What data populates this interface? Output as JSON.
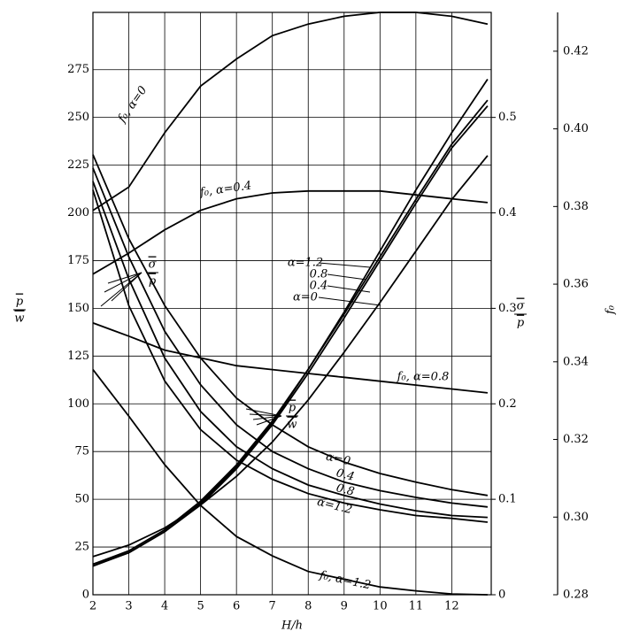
{
  "chart_data": {
    "type": "line",
    "xlabel": "H/h",
    "ylabel": {
      "num": "p",
      "den": "w"
    },
    "y2label": {
      "num": "σ",
      "den": "p"
    },
    "y3label": "f₀",
    "x": [
      2,
      3,
      4,
      5,
      6,
      7,
      8,
      9,
      10,
      11,
      12,
      13
    ],
    "xlim": [
      2,
      13.1
    ],
    "xticks": [
      2,
      3,
      4,
      5,
      6,
      7,
      8,
      9,
      10,
      11,
      12
    ],
    "ylim": [
      0,
      305
    ],
    "yticks": [
      0,
      25,
      50,
      75,
      100,
      125,
      150,
      175,
      200,
      225,
      250,
      275
    ],
    "y2lim": [
      0,
      0.61
    ],
    "y2ticks": [
      0,
      0.1,
      0.2,
      0.3,
      0.4,
      0.5
    ],
    "y3lim": [
      0.28,
      0.43
    ],
    "y3ticks": [
      {
        "value": 0.28,
        "label": "0.28"
      },
      {
        "value": 0.3,
        "label": "0.30"
      },
      0.32,
      0.34,
      0.36,
      0.38,
      {
        "value": 0.4,
        "label": "0.40"
      },
      0.42
    ],
    "grid": true,
    "series": [
      {
        "name": "f₀, α=0",
        "color": "#000000",
        "axis": "y3",
        "values": [
          0.379,
          0.385,
          0.399,
          0.411,
          0.418,
          0.424,
          0.427,
          0.429,
          0.43,
          0.43,
          0.429,
          0.427
        ]
      },
      {
        "name": "f₀, α=0.4",
        "color": "#000000",
        "axis": "y3",
        "values": [
          0.3626,
          0.368,
          0.374,
          0.379,
          0.382,
          0.3835,
          0.384,
          0.384,
          0.384,
          0.383,
          0.382,
          0.381
        ]
      },
      {
        "name": "f₀, α=0.8",
        "color": "#000000",
        "axis": "y3",
        "values": [
          0.35,
          0.3466,
          0.343,
          0.341,
          0.339,
          0.338,
          0.337,
          0.336,
          0.335,
          0.334,
          0.333,
          0.332
        ]
      },
      {
        "name": "f₀, α=1.2",
        "color": "#000000",
        "axis": "y3",
        "values": [
          0.338,
          0.326,
          0.3135,
          0.303,
          0.295,
          0.29,
          0.286,
          0.284,
          0.282,
          0.281,
          0.2802,
          0.28
        ]
      },
      {
        "name": "α=0",
        "color": "#000000",
        "axis": "y2",
        "values": [
          0.461,
          0.373,
          0.303,
          0.248,
          0.206,
          0.178,
          0.155,
          0.139,
          0.127,
          0.118,
          0.11,
          0.104
        ]
      },
      {
        "name": "0.4",
        "color": "#000000",
        "axis": "y2",
        "values": [
          0.447,
          0.354,
          0.276,
          0.22,
          0.178,
          0.15,
          0.132,
          0.118,
          0.109,
          0.102,
          0.096,
          0.092
        ]
      },
      {
        "name": "0.8",
        "color": "#000000",
        "axis": "y2",
        "values": [
          0.433,
          0.331,
          0.248,
          0.192,
          0.155,
          0.132,
          0.115,
          0.104,
          0.095,
          0.088,
          0.083,
          0.081
        ]
      },
      {
        "name": "α=1.2",
        "color": "#000000",
        "axis": "y2",
        "values": [
          0.424,
          0.303,
          0.224,
          0.173,
          0.141,
          0.121,
          0.106,
          0.096,
          0.089,
          0.083,
          0.08,
          0.076
        ]
      },
      {
        "name": "α=1.2",
        "color": "#000000",
        "values": [
          15,
          22,
          33,
          48,
          67,
          90,
          118,
          148,
          180,
          212,
          242,
          270
        ]
      },
      {
        "name": "0.8",
        "color": "#000000",
        "values": [
          16,
          23,
          34,
          49,
          68,
          91,
          118,
          147,
          177,
          207,
          236,
          259
        ]
      },
      {
        "name": "0.4",
        "color": "#000000",
        "values": [
          16,
          22,
          33,
          47,
          66,
          89,
          116,
          145,
          175,
          205,
          234,
          256
        ]
      },
      {
        "name": "α=0",
        "color": "#000000",
        "values": [
          20,
          26,
          35,
          47,
          62,
          80,
          102,
          127,
          153,
          180,
          207,
          230
        ]
      }
    ],
    "annotations": [
      {
        "num": "σ",
        "den": "p"
      },
      {
        "num": "p",
        "den": "w"
      }
    ]
  }
}
